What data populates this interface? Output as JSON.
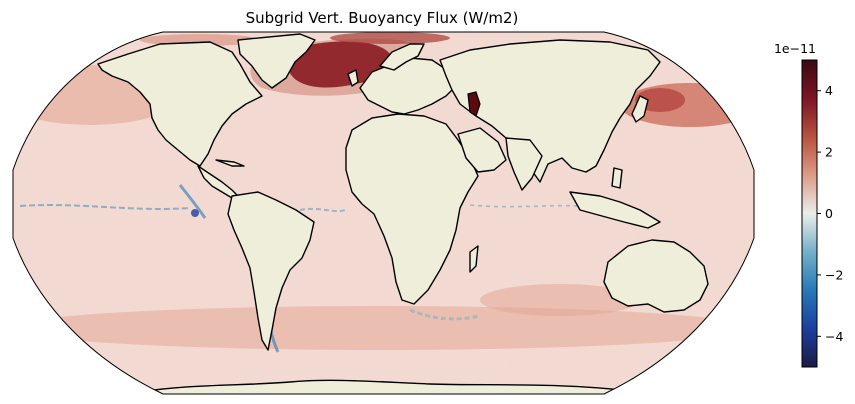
{
  "map": {
    "title": "Subgrid Vert. Buoyancy Flux (W/m2)",
    "projection": "robinson",
    "land_color": "#efeedb",
    "ocean_background": "#f3dcd4",
    "coastline_color": "#000000"
  },
  "colorbar": {
    "colormap": "balance",
    "vmin": -5,
    "vmax": 5,
    "exponent_label": "1e−11",
    "ticks": [
      4,
      2,
      0,
      -2,
      -4
    ],
    "tick_labels": [
      "4",
      "2",
      "0",
      "−2",
      "−4"
    ],
    "stops": [
      "#1b1b47",
      "#1b3fa0",
      "#2878b8",
      "#74b0c8",
      "#e9eeec",
      "#dc9c86",
      "#b9503f",
      "#7d1525",
      "#3c0912"
    ]
  }
}
